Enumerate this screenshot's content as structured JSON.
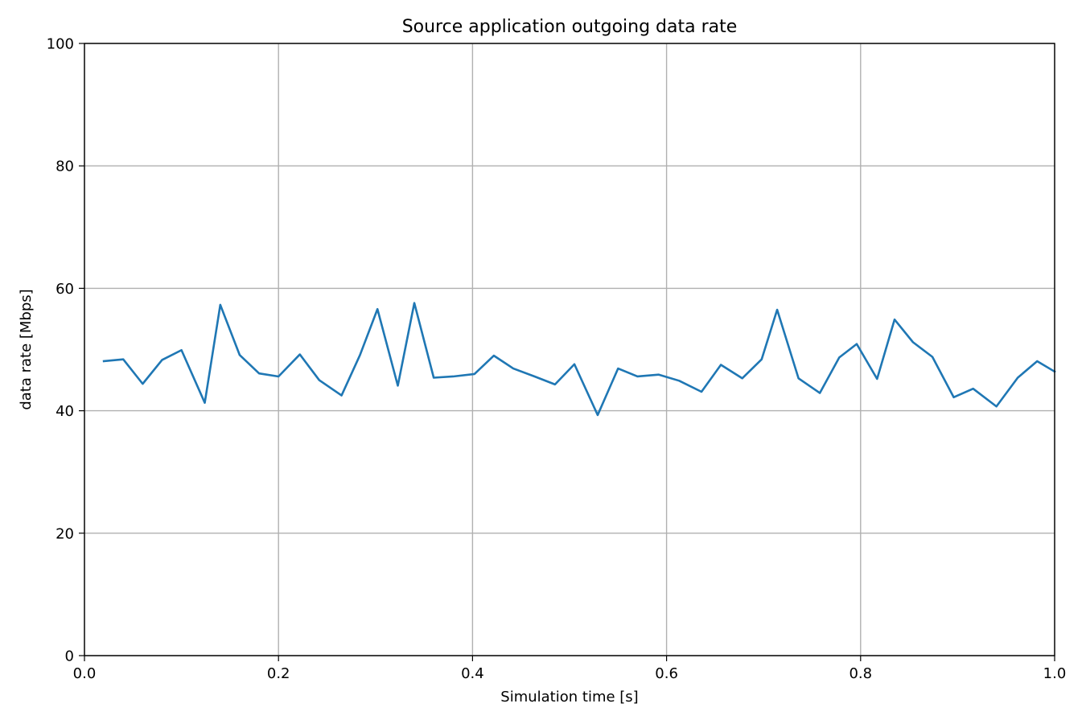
{
  "chart_data": {
    "type": "line",
    "title": "Source application outgoing data rate",
    "xlabel": "Simulation time [s]",
    "ylabel": "data rate [Mbps]",
    "xlim": [
      0.0,
      1.0
    ],
    "ylim": [
      0,
      100
    ],
    "xticks": [
      0.0,
      0.2,
      0.4,
      0.6,
      0.8,
      1.0
    ],
    "xtick_labels": [
      "0.0",
      "0.2",
      "0.4",
      "0.6",
      "0.8",
      "1.0"
    ],
    "yticks": [
      0,
      20,
      40,
      60,
      80,
      100
    ],
    "ytick_labels": [
      "0",
      "20",
      "40",
      "60",
      "80",
      "100"
    ],
    "grid": true,
    "legend": false,
    "series": [
      {
        "color": "#1f77b4",
        "x": [
          0.02,
          0.04,
          0.06,
          0.08,
          0.1,
          0.124,
          0.14,
          0.16,
          0.18,
          0.2,
          0.222,
          0.242,
          0.265,
          0.284,
          0.302,
          0.323,
          0.34,
          0.36,
          0.38,
          0.402,
          0.422,
          0.442,
          0.464,
          0.485,
          0.505,
          0.529,
          0.55,
          0.57,
          0.592,
          0.613,
          0.636,
          0.656,
          0.678,
          0.698,
          0.714,
          0.736,
          0.758,
          0.778,
          0.796,
          0.817,
          0.835,
          0.854,
          0.874,
          0.896,
          0.916,
          0.94,
          0.962,
          0.982,
          1.0
        ],
        "y": [
          48.1,
          48.4,
          44.4,
          48.3,
          49.9,
          41.3,
          57.3,
          49.1,
          46.1,
          45.6,
          49.2,
          45.0,
          42.5,
          49.1,
          56.6,
          44.1,
          57.6,
          45.4,
          45.6,
          46.0,
          49.0,
          46.9,
          45.6,
          44.3,
          47.6,
          39.3,
          46.9,
          45.6,
          45.9,
          44.9,
          43.1,
          47.5,
          45.3,
          48.4,
          56.5,
          45.3,
          42.9,
          48.7,
          50.9,
          45.2,
          54.9,
          51.2,
          48.8,
          42.2,
          43.6,
          40.7,
          45.4,
          48.1,
          46.4
        ]
      }
    ]
  }
}
